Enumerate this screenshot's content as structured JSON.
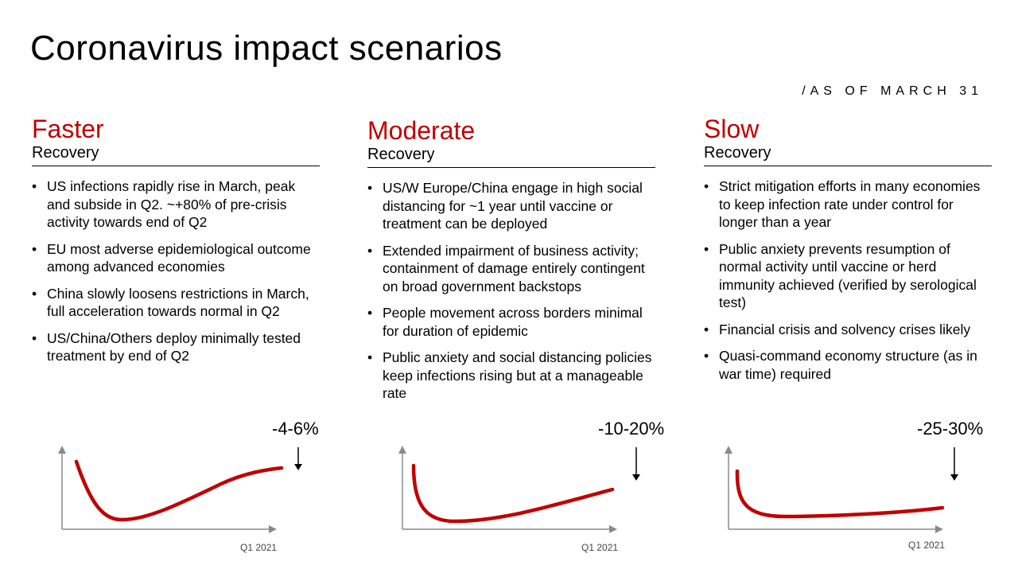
{
  "title": "Coronavirus impact scenarios",
  "as_of": "/AS OF MARCH 31",
  "accent_color": "#c00000",
  "scenarios": [
    {
      "heading": "Faster",
      "subheading": "Recovery",
      "bullets": [
        "US infections rapidly rise in March, peak and subside in Q2. ~+80% of pre-crisis activity towards end of Q2",
        "EU most adverse epidemiological outcome among advanced economies",
        "China slowly loosens restrictions in March, full acceleration towards normal in Q2",
        "US/China/Others deploy minimally tested treatment by end of Q2"
      ],
      "impact": "-4-6%",
      "x_label": "Q1 2021"
    },
    {
      "heading": "Moderate",
      "subheading": "Recovery",
      "bullets": [
        "US/W Europe/China engage in high social distancing for ~1 year until vaccine or treatment can be deployed",
        "Extended impairment of business activity; containment of damage entirely contingent on broad government backstops",
        "People movement across borders minimal for duration of epidemic",
        "Public anxiety and social distancing policies keep infections rising but at a manageable rate"
      ],
      "impact": "-10-20%",
      "x_label": "Q1 2021"
    },
    {
      "heading": "Slow",
      "subheading": "Recovery",
      "bullets": [
        "Strict mitigation efforts in many economies to keep infection rate under control for longer than a year",
        "Public anxiety prevents resumption of normal activity until vaccine or herd immunity achieved (verified by serological test)",
        "Financial crisis and solvency crises likely",
        "Quasi-command economy structure (as in war time) required"
      ],
      "impact": "-25-30%",
      "x_label": "Q1 2021"
    }
  ]
}
